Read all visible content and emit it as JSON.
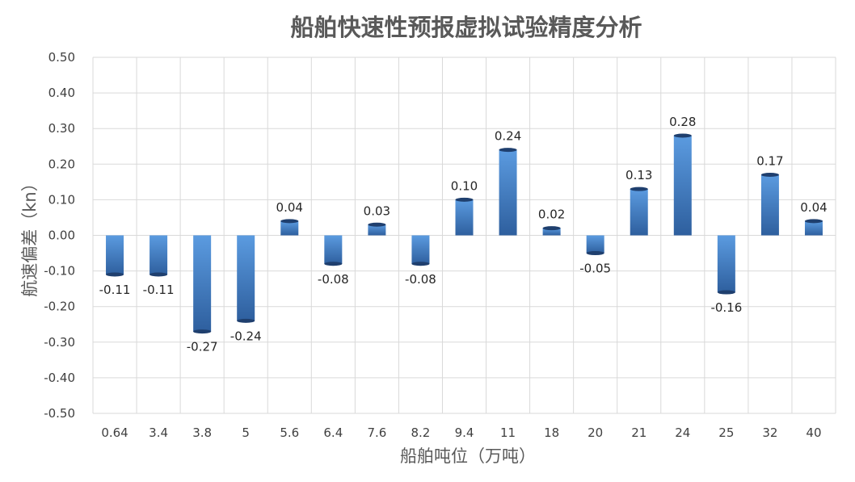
{
  "chart_data": {
    "type": "bar",
    "title": "船舶快速性预报虚拟试验精度分析",
    "xlabel": "船舶吨位（万吨）",
    "ylabel": "航速偏差（kn）",
    "categories": [
      "0.64",
      "3.4",
      "3.8",
      "5",
      "5.6",
      "6.4",
      "7.6",
      "8.2",
      "9.4",
      "11",
      "18",
      "20",
      "21",
      "24",
      "25",
      "32",
      "40"
    ],
    "values": [
      -0.11,
      -0.11,
      -0.27,
      -0.24,
      0.04,
      -0.08,
      0.03,
      -0.08,
      0.1,
      0.24,
      0.02,
      -0.05,
      0.13,
      0.28,
      -0.16,
      0.17,
      0.04
    ],
    "data_labels": [
      "-0.11",
      "-0.11",
      "-0.27",
      "-0.24",
      "0.04",
      "-0.08",
      "0.03",
      "-0.08",
      "0.10",
      "0.24",
      "0.02",
      "-0.05",
      "0.13",
      "0.28",
      "-0.16",
      "0.17",
      "0.04"
    ],
    "ylim": [
      -0.5,
      0.5
    ],
    "yticks": [
      "-0.50",
      "-0.40",
      "-0.30",
      "-0.20",
      "-0.10",
      "0.00",
      "0.10",
      "0.20",
      "0.30",
      "0.40",
      "0.50"
    ],
    "grid": true,
    "legend": "none",
    "colors": {
      "bar_light": "#5b9be0",
      "bar_dark": "#2e5f9e",
      "bar_cap": "#1f3f6e"
    }
  }
}
